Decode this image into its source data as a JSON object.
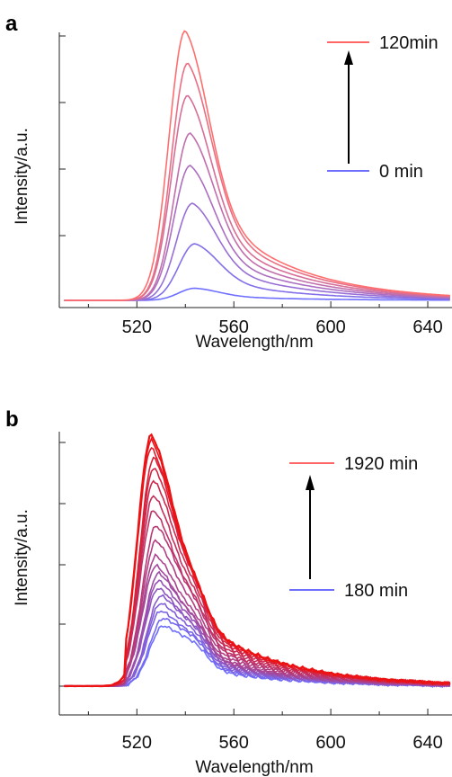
{
  "chart_data": [
    {
      "type": "line",
      "panel_label": "a",
      "xlabel": "Wavelength/nm",
      "ylabel": "Intensity/a.u.",
      "xlim": [
        488,
        650
      ],
      "ylim": [
        0,
        1.0
      ],
      "xticks": [
        520,
        560,
        600,
        640
      ],
      "x_minor_ticks": [
        500,
        540,
        580,
        620
      ],
      "legend": [
        {
          "label": "120min",
          "color": "#ff6666"
        },
        {
          "label": "0 min",
          "color": "#6e6eff"
        }
      ],
      "legend_placement": "top-right",
      "arrow": "up",
      "color_from": "#6e6eff",
      "color_to": "#ff6e6e",
      "series": [
        {
          "label": "0 min",
          "peak_x": 544,
          "peak_y": 0.045
        },
        {
          "peak_x": 544,
          "peak_y": 0.21
        },
        {
          "peak_x": 543,
          "peak_y": 0.36
        },
        {
          "peak_x": 542,
          "peak_y": 0.5
        },
        {
          "peak_x": 542,
          "peak_y": 0.62
        },
        {
          "peak_x": 541,
          "peak_y": 0.76
        },
        {
          "peak_x": 541,
          "peak_y": 0.88
        },
        {
          "label": "120min",
          "peak_x": 540,
          "peak_y": 1.0
        }
      ]
    },
    {
      "type": "line",
      "panel_label": "b",
      "xlabel": "Wavelength/nm",
      "ylabel": "Intensity/a.u.",
      "xlim": [
        488,
        650
      ],
      "ylim": [
        0,
        1.0
      ],
      "xticks": [
        520,
        560,
        600,
        640
      ],
      "x_minor_ticks": [
        500,
        540,
        580,
        620
      ],
      "legend": [
        {
          "label": "1920 min",
          "color": "#ff6666"
        },
        {
          "label": "180 min",
          "color": "#6e6eff"
        }
      ],
      "legend_placement": "top-right",
      "arrow": "up",
      "color_from": "#6e6eff",
      "color_to": "#ee1111",
      "series": [
        {
          "label": "180 min",
          "peak_x": 531,
          "peak_y": 0.24
        },
        {
          "peak_x": 531,
          "peak_y": 0.27
        },
        {
          "peak_x": 530,
          "peak_y": 0.3
        },
        {
          "peak_x": 530,
          "peak_y": 0.33
        },
        {
          "peak_x": 530,
          "peak_y": 0.36
        },
        {
          "peak_x": 529,
          "peak_y": 0.39
        },
        {
          "peak_x": 529,
          "peak_y": 0.42
        },
        {
          "peak_x": 529,
          "peak_y": 0.45
        },
        {
          "peak_x": 528,
          "peak_y": 0.48
        },
        {
          "peak_x": 528,
          "peak_y": 0.52
        },
        {
          "peak_x": 528,
          "peak_y": 0.58
        },
        {
          "peak_x": 528,
          "peak_y": 0.64
        },
        {
          "peak_x": 527,
          "peak_y": 0.7
        },
        {
          "peak_x": 527,
          "peak_y": 0.76
        },
        {
          "peak_x": 527,
          "peak_y": 0.82
        },
        {
          "peak_x": 527,
          "peak_y": 0.87
        },
        {
          "peak_x": 527,
          "peak_y": 0.91
        },
        {
          "peak_x": 526,
          "peak_y": 0.95
        },
        {
          "peak_x": 526,
          "peak_y": 0.98
        },
        {
          "label": "1920 min",
          "peak_x": 526,
          "peak_y": 1.0
        }
      ]
    }
  ]
}
